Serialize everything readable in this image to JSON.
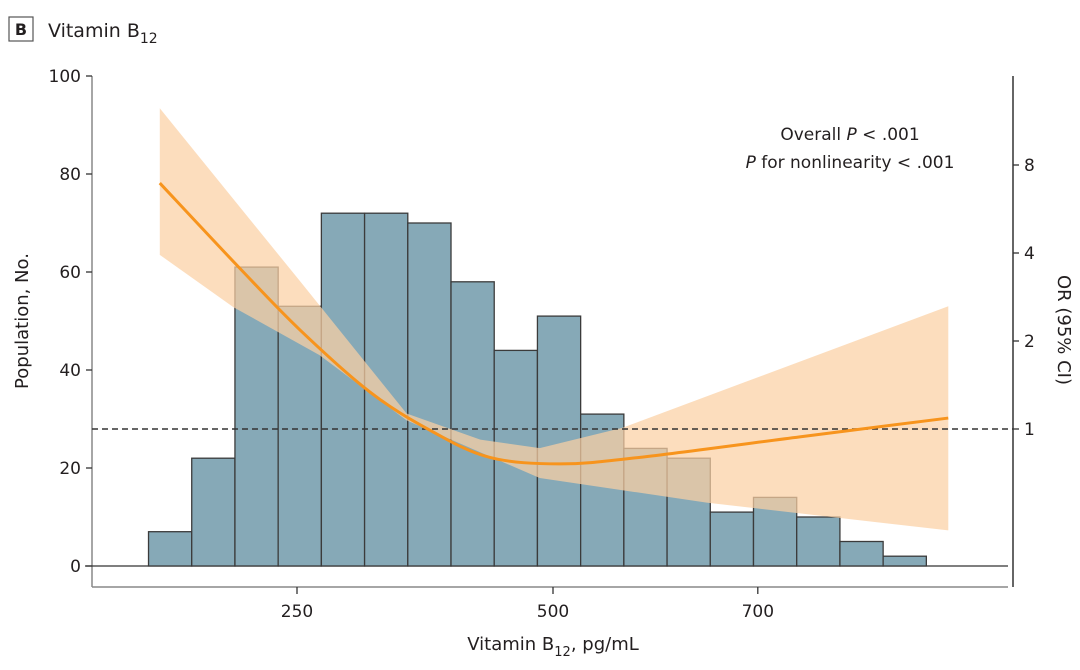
{
  "panel": {
    "letter": "B",
    "title": "Vitamin B",
    "title_sub": "12"
  },
  "chart_data": {
    "type": "bar+line",
    "title": "Vitamin B12",
    "xlabel": "Vitamin B12, pg/mL",
    "xlabel_parts": {
      "pre": "Vitamin B",
      "sub": "12",
      "post": ", pg/mL"
    },
    "ylabel": "Population, No.",
    "y2label": "OR (95% CI)",
    "xlim": [
      50,
      944
    ],
    "ylim": [
      0,
      100
    ],
    "y2_scale": "log2",
    "x_ticks": [
      250,
      500,
      700
    ],
    "y_ticks": [
      0,
      20,
      40,
      60,
      80,
      100
    ],
    "y2_ticks": [
      1,
      2,
      4,
      8
    ],
    "reference_line_or": 1,
    "histogram": {
      "bin_start": 105,
      "bin_width": 42.2,
      "counts": [
        7,
        22,
        61,
        53,
        72,
        72,
        70,
        58,
        44,
        51,
        31,
        24,
        22,
        11,
        14,
        10,
        5,
        2
      ]
    },
    "or_curve": {
      "x": [
        116,
        194,
        253,
        321,
        380,
        438,
        507,
        585,
        741,
        886
      ],
      "or": [
        6.94,
        3.55,
        2.18,
        1.34,
        0.99,
        0.8,
        0.76,
        0.8,
        0.94,
        1.09
      ]
    },
    "ci_upper": {
      "x": [
        116,
        253,
        357,
        429,
        487,
        568,
        886
      ],
      "or": [
        12.5,
        3.2,
        1.13,
        0.92,
        0.86,
        1.01,
        2.63
      ]
    },
    "ci_lower": {
      "x": [
        116,
        188,
        272,
        357,
        487,
        650,
        886
      ],
      "or": [
        3.94,
        2.61,
        1.79,
        1.07,
        0.68,
        0.56,
        0.45
      ]
    },
    "annotations": [
      {
        "pre": "Overall ",
        "italic": "P",
        "post": " < .001"
      },
      {
        "pre": "",
        "italic": "P",
        "post": " for nonlinearity < .001"
      }
    ],
    "colors": {
      "bar": "#86a9b7",
      "bar_edge": "#3b3b3b",
      "curve": "#f7941d",
      "band": "#fbd0a3"
    }
  }
}
